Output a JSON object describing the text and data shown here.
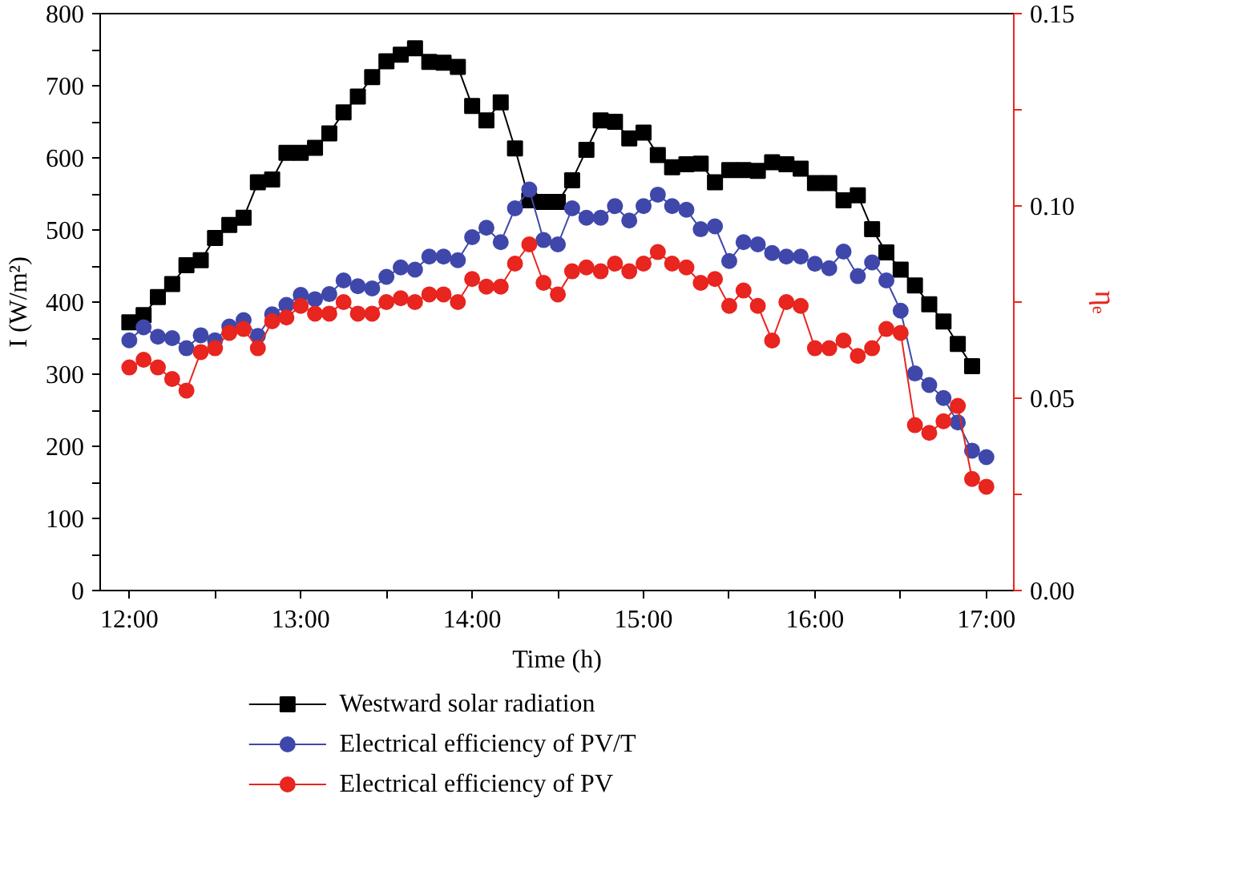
{
  "chart_data": {
    "type": "line",
    "xlabel": "Time (h)",
    "ylabel": "I (W/m²)",
    "y2label": "ηₑ",
    "x": [
      12.0,
      12.0833,
      12.1667,
      12.25,
      12.3333,
      12.4167,
      12.5,
      12.5833,
      12.6667,
      12.75,
      12.8333,
      12.9167,
      13.0,
      13.0833,
      13.1667,
      13.25,
      13.3333,
      13.4167,
      13.5,
      13.5833,
      13.6667,
      13.75,
      13.8333,
      13.9167,
      14.0,
      14.0833,
      14.1667,
      14.25,
      14.3333,
      14.4167,
      14.5,
      14.5833,
      14.6667,
      14.75,
      14.8333,
      14.9167,
      15.0,
      15.0833,
      15.1667,
      15.25,
      15.3333,
      15.4167,
      15.5,
      15.5833,
      15.6667,
      15.75,
      15.8333,
      15.9167,
      16.0,
      16.0833,
      16.1667,
      16.25,
      16.3333,
      16.4167,
      16.5,
      16.5833,
      16.6667,
      16.75,
      16.8333,
      16.9167,
      17.0
    ],
    "series": [
      {
        "name": "Westward solar radiation",
        "color": "#000000",
        "marker": "square",
        "values": [
          372,
          382,
          407,
          425,
          451,
          458,
          489,
          507,
          517,
          566,
          570,
          607,
          607,
          614,
          634,
          663,
          685,
          712,
          734,
          743,
          752,
          733,
          732,
          726,
          672,
          652,
          677,
          613,
          541,
          539,
          539,
          569,
          611,
          652,
          650,
          627,
          635,
          604,
          587,
          591,
          592,
          566,
          583,
          583,
          582,
          594,
          591,
          585,
          565,
          565,
          541,
          548,
          501,
          469,
          445,
          423,
          397,
          373,
          342,
          311,
          null
        ]
      },
      {
        "name": "Electrical efficiency of PV/T",
        "color": "#3f48aa",
        "marker": "circle",
        "values": [
          347,
          365,
          352,
          350,
          336,
          354,
          347,
          366,
          375,
          353,
          383,
          396,
          410,
          404,
          411,
          430,
          422,
          419,
          435,
          448,
          445,
          463,
          463,
          458,
          490,
          503,
          483,
          530,
          556,
          486,
          480,
          530,
          517,
          517,
          533,
          513,
          533,
          549,
          533,
          528,
          501,
          505,
          457,
          483,
          480,
          468,
          463,
          463,
          453,
          447,
          470,
          436,
          455,
          430,
          388,
          301,
          285,
          267,
          233,
          194,
          185
        ]
      },
      {
        "name": "Electrical efficiency of PV",
        "color": "#e8251f",
        "marker": "circle",
        "axis": "y2",
        "values": [
          0.058,
          0.06,
          0.058,
          0.055,
          0.052,
          0.062,
          0.063,
          0.067,
          0.068,
          0.063,
          0.07,
          0.071,
          0.074,
          0.072,
          0.072,
          0.075,
          0.072,
          0.072,
          0.075,
          0.076,
          0.075,
          0.077,
          0.077,
          0.075,
          0.081,
          0.079,
          0.079,
          0.085,
          0.09,
          0.08,
          0.077,
          0.083,
          0.084,
          0.083,
          0.085,
          0.083,
          0.085,
          0.088,
          0.085,
          0.084,
          0.08,
          0.081,
          0.074,
          0.078,
          0.074,
          0.065,
          0.075,
          0.074,
          0.063,
          0.063,
          0.065,
          0.061,
          0.063,
          0.068,
          0.067,
          0.043,
          0.041,
          0.044,
          0.048,
          0.029,
          0.027
        ]
      }
    ],
    "xlim": [
      11.83,
      17.16
    ],
    "xticks": [
      {
        "value": 12,
        "label": "12:00"
      },
      {
        "value": 12.5,
        "label": null
      },
      {
        "value": 13,
        "label": "13:00"
      },
      {
        "value": 13.5,
        "label": null
      },
      {
        "value": 14,
        "label": "14:00"
      },
      {
        "value": 14.5,
        "label": null
      },
      {
        "value": 15,
        "label": "15:00"
      },
      {
        "value": 15.5,
        "label": null
      },
      {
        "value": 16,
        "label": "16:00"
      },
      {
        "value": 16.5,
        "label": null
      },
      {
        "value": 17,
        "label": "17:00"
      }
    ],
    "ylim": [
      0,
      800
    ],
    "yticks": [
      0,
      {
        "value": 50,
        "label": null
      },
      100,
      {
        "value": 150,
        "label": null
      },
      200,
      {
        "value": 250,
        "label": null
      },
      300,
      {
        "value": 350,
        "label": null
      },
      400,
      {
        "value": 450,
        "label": null
      },
      500,
      {
        "value": 550,
        "label": null
      },
      600,
      {
        "value": 650,
        "label": null
      },
      700,
      {
        "value": 750,
        "label": null
      },
      800
    ],
    "y2lim": [
      0,
      0.15
    ],
    "y2ticks": [
      {
        "value": 0,
        "label": "0.00"
      },
      {
        "value": 0.025,
        "label": null
      },
      {
        "value": 0.05,
        "label": "0.05"
      },
      {
        "value": 0.075,
        "label": null
      },
      {
        "value": 0.1,
        "label": "0.10"
      },
      {
        "value": 0.125,
        "label": null
      },
      {
        "value": 0.15,
        "label": "0.15"
      }
    ],
    "grid": false,
    "legend": "bottom",
    "line_style": "solid"
  }
}
